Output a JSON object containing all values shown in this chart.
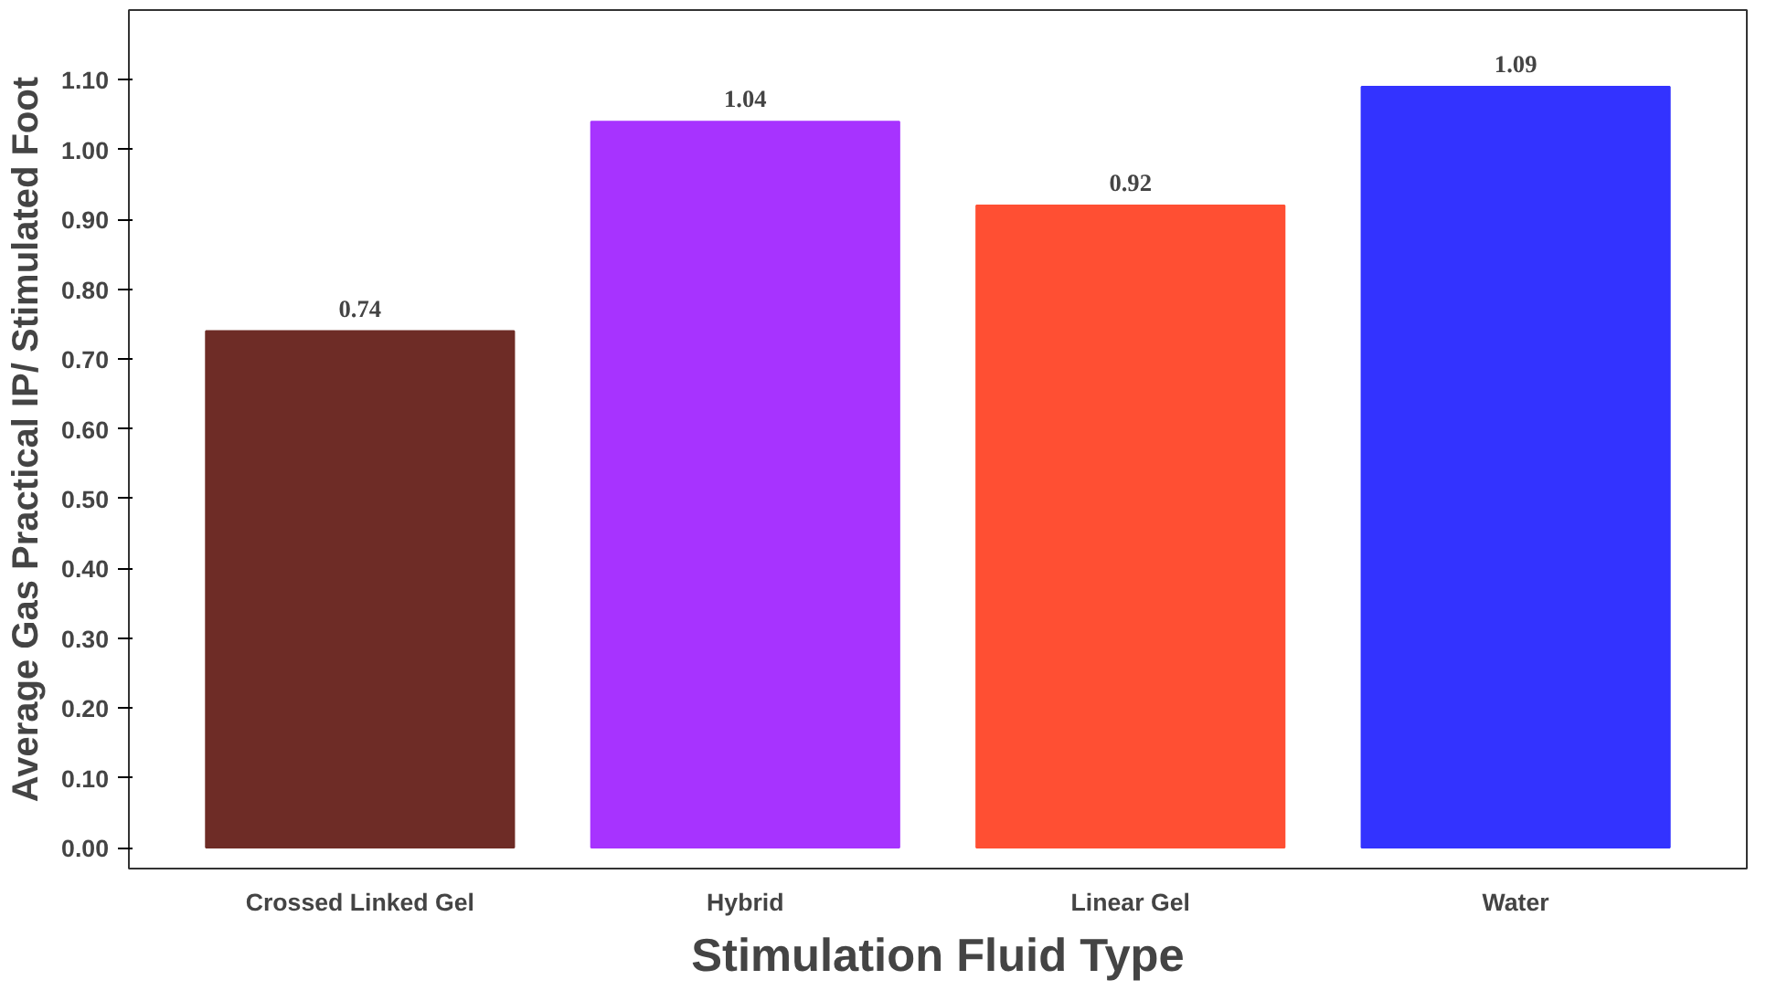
{
  "chart_data": {
    "type": "bar",
    "xlabel": "Stimulation Fluid Type",
    "ylabel": "Average Gas Practical IP/ Stimulated Foot",
    "categories": [
      "Crossed Linked Gel",
      "Hybrid",
      "Linear Gel",
      "Water"
    ],
    "values": [
      0.74,
      1.04,
      0.92,
      1.09
    ],
    "colors": [
      "#6e2c26",
      "#a733ff",
      "#ff4f33",
      "#3333ff"
    ],
    "ylim": [
      -0.03,
      1.2
    ],
    "yticks": [
      {
        "value": 0,
        "label": "0.00"
      },
      {
        "value": 0.1,
        "label": "0.10"
      },
      {
        "value": 0.2,
        "label": "0.20"
      },
      {
        "value": 0.3,
        "label": "0.30"
      },
      {
        "value": 0.4,
        "label": "0.40"
      },
      {
        "value": 0.5,
        "label": "0.50"
      },
      {
        "value": 0.6,
        "label": "0.60"
      },
      {
        "value": 0.7,
        "label": "0.70"
      },
      {
        "value": 0.8,
        "label": "0.80"
      },
      {
        "value": 0.9,
        "label": "0.90"
      },
      {
        "value": 1.0,
        "label": "1.00"
      },
      {
        "value": 1.1,
        "label": "1.10"
      }
    ],
    "data_labels": true,
    "grid": false
  }
}
